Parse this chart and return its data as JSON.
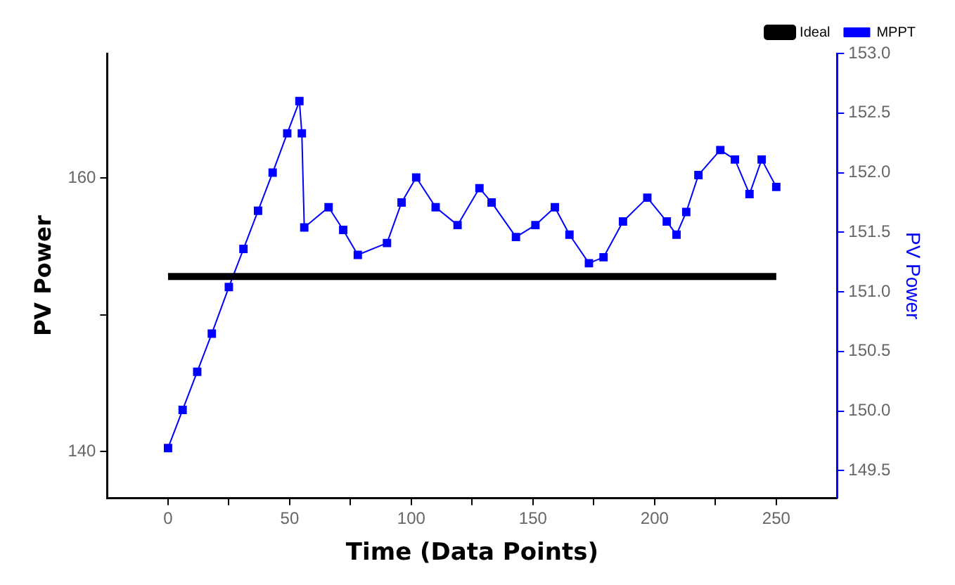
{
  "chart_data": {
    "type": "line",
    "xlabel": "Time (Data Points)",
    "ylabel": "PV Power",
    "y2label": "PV Power",
    "xlim": [
      -25,
      275
    ],
    "xticks": [
      0,
      {
        "value": 25,
        "label": null
      },
      50,
      {
        "value": 75,
        "label": null
      },
      100,
      {
        "value": 125,
        "label": null
      },
      150,
      {
        "value": 175,
        "label": null
      },
      200,
      {
        "value": 225,
        "label": null
      },
      250
    ],
    "ylim": [
      136.6,
      169.1
    ],
    "yticks": [
      140,
      {
        "value": 150,
        "label": null
      },
      160
    ],
    "y2lim": [
      149.27,
      153.0
    ],
    "y2ticks": [
      149.5,
      {
        "value": 150,
        "label": "150.0"
      },
      150.5,
      {
        "value": 151,
        "label": "151.0"
      },
      151.5,
      {
        "value": 152,
        "label": "152.0"
      },
      152.5,
      {
        "value": 153,
        "label": "153.0"
      }
    ],
    "grid": false,
    "legend": "top right",
    "marker": "square",
    "line_style": "solid",
    "series": [
      {
        "name": "Ideal",
        "color": "#000000",
        "marker": "none",
        "x": [
          0,
          250
        ],
        "values": [
          152.8,
          152.8
        ]
      },
      {
        "name": "MPPT",
        "color": "#0000ff",
        "axis": "y2",
        "x": [
          0,
          6,
          12,
          18,
          25,
          31,
          37,
          43,
          49,
          54,
          55,
          56,
          66,
          72,
          78,
          90,
          96,
          102,
          110,
          119,
          128,
          133,
          143,
          151,
          159,
          165,
          173,
          179,
          187,
          197,
          205,
          209,
          213,
          218,
          227,
          233,
          239,
          244,
          250
        ],
        "values": [
          149.69,
          150.01,
          150.33,
          150.65,
          151.04,
          151.36,
          151.68,
          152.0,
          152.33,
          152.6,
          152.33,
          151.54,
          151.71,
          151.52,
          151.31,
          151.41,
          151.75,
          151.96,
          151.71,
          151.56,
          151.87,
          151.75,
          151.46,
          151.56,
          151.71,
          151.48,
          151.24,
          151.29,
          151.59,
          151.79,
          151.59,
          151.48,
          151.67,
          151.98,
          152.19,
          152.11,
          151.82,
          152.11,
          151.88
        ]
      }
    ]
  }
}
